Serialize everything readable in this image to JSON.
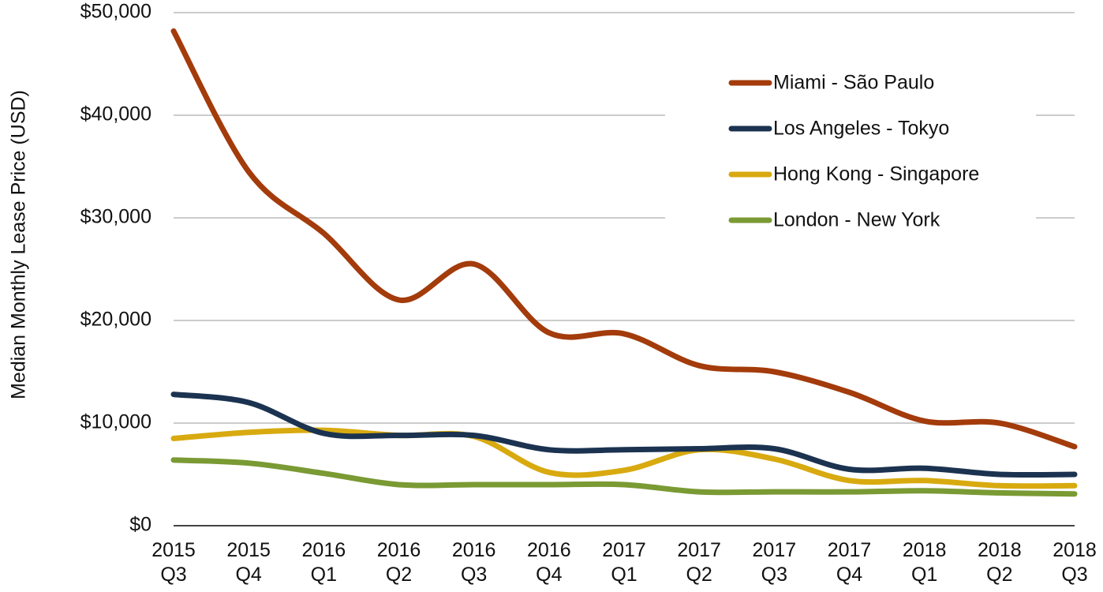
{
  "chart_data": {
    "type": "line",
    "y_label": "Median Monthly Lease Price (USD)",
    "categories": [
      "2015 Q3",
      "2015 Q4",
      "2016 Q1",
      "2016 Q2",
      "2016 Q3",
      "2016 Q4",
      "2017 Q1",
      "2017 Q2",
      "2017 Q3",
      "2017 Q4",
      "2018 Q1",
      "2018 Q2",
      "2018 Q3"
    ],
    "series": [
      {
        "name": "Miami - São Paulo",
        "color": "#a33b0b",
        "values": [
          48200,
          34500,
          28500,
          22000,
          25500,
          18800,
          18700,
          15600,
          15000,
          13000,
          10200,
          10000,
          7700
        ]
      },
      {
        "name": "Los Angeles - Tokyo",
        "color": "#1b3350",
        "values": [
          12800,
          12000,
          9000,
          8800,
          8800,
          7400,
          7400,
          7500,
          7500,
          5500,
          5600,
          5000,
          5000
        ]
      },
      {
        "name": "Hong Kong - Singapore",
        "color": "#d8aa10",
        "values": [
          8500,
          9100,
          9300,
          8800,
          8700,
          5200,
          5400,
          7400,
          6500,
          4400,
          4400,
          3900,
          3900
        ]
      },
      {
        "name": "London - New York",
        "color": "#7a9a34",
        "values": [
          6400,
          6100,
          5100,
          4000,
          4000,
          4000,
          4000,
          3300,
          3300,
          3300,
          3400,
          3200,
          3100
        ]
      }
    ],
    "ylim": [
      0,
      50000
    ],
    "yticks": [
      {
        "value": 0,
        "label": "$0"
      },
      {
        "value": 10000,
        "label": "$10,000"
      },
      {
        "value": 20000,
        "label": "$20,000"
      },
      {
        "value": 30000,
        "label": "$30,000"
      },
      {
        "value": 40000,
        "label": "$40,000"
      },
      {
        "value": 50000,
        "label": "$50,000"
      }
    ],
    "grid": true,
    "legend": "upper right"
  }
}
